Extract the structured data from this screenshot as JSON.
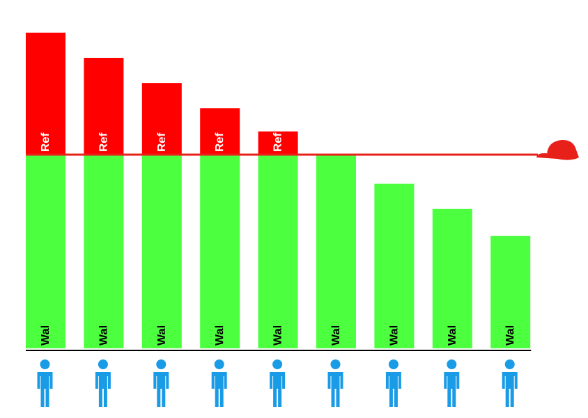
{
  "chart_data": {
    "type": "stacked_bar",
    "categories": [
      null,
      null,
      null,
      null,
      null,
      null,
      null,
      null,
      null
    ],
    "series": [
      {
        "name": "Wabi",
        "color": "#4cff3f",
        "values": [
          100,
          100,
          100,
          100,
          100,
          100,
          85,
          72,
          58
        ]
      },
      {
        "name": "Refund",
        "color": "#ff0000",
        "values": [
          63,
          50,
          37,
          24,
          12,
          null,
          null,
          null,
          null
        ]
      }
    ],
    "limit": 100,
    "ylim": [
      0,
      180
    ]
  }
}
